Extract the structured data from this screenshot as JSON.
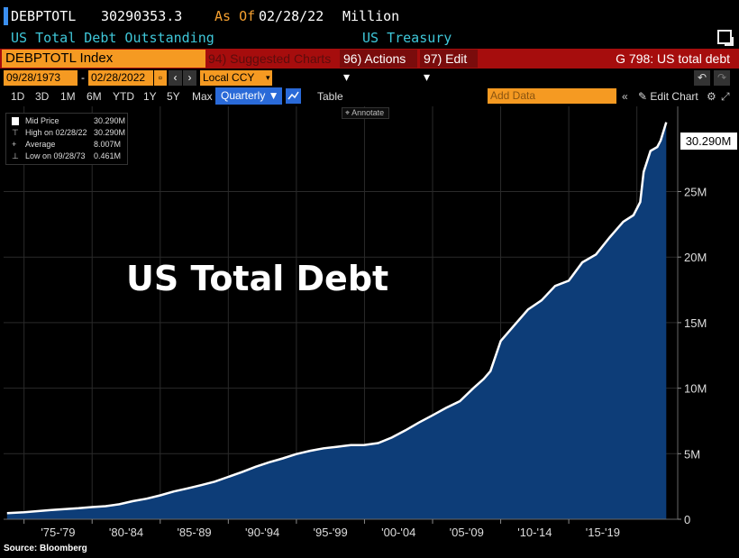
{
  "header": {
    "ticker": "DEBPTOTL",
    "last_value": "30290353.3",
    "as_of_label": "As Of",
    "as_of_date": "02/28/22",
    "units": "Million",
    "description": "US Total Debt Outstanding",
    "source": "US Treasury"
  },
  "toolbar": {
    "security": "DEBPTOTL Index",
    "suggested_charts": "94) Suggested Charts",
    "actions_label": "96) Actions ▾",
    "edit_label": "97) Edit ▾",
    "chart_title": "G 798: US total debt"
  },
  "range": {
    "start": "09/28/1973",
    "dash": "-",
    "end": "02/28/2022",
    "currency": "Local CCY"
  },
  "periods": [
    "1D",
    "3D",
    "1M",
    "6M",
    "YTD",
    "1Y",
    "5Y",
    "Max"
  ],
  "frequency": "Quarterly ▼",
  "table_label": "Table",
  "add_data_placeholder": "Add Data",
  "edit_chart_label": "Edit Chart",
  "annotate_label": "Annotate",
  "legend": [
    {
      "label": "Mid Price",
      "value": "30.290M"
    },
    {
      "label": "High on 02/28/22",
      "value": "30.290M"
    },
    {
      "label": "Average",
      "value": "8.007M"
    },
    {
      "label": "Low on 09/28/73",
      "value": "0.461M"
    }
  ],
  "source_note": "Source: Bloomberg",
  "colors": {
    "background": "#000000",
    "area_fill": "#0d3d78",
    "line": "#ffffff",
    "accent_orange": "#f59a22",
    "accent_red": "#a60d0d",
    "accent_cyan": "#3fc7d9"
  },
  "chart_data": {
    "type": "area",
    "title": "US Total Debt",
    "xlabel": "",
    "ylabel": "",
    "x_tick_labels": [
      "'75-'79",
      "'80-'84",
      "'85-'89",
      "'90-'94",
      "'95-'99",
      "'00-'04",
      "'05-'09",
      "'10-'14",
      "'15-'19"
    ],
    "y_tick_labels": [
      "0",
      "5M",
      "10M",
      "15M",
      "20M",
      "25M"
    ],
    "y_ticks": [
      0,
      5,
      10,
      15,
      20,
      25
    ],
    "ylim": [
      0,
      31.5
    ],
    "xlim": [
      1973.5,
      2023.0
    ],
    "last_value_label": "30.290M",
    "grid": true,
    "series": [
      {
        "x": [
          1973.75,
          1975.0,
          1976.0,
          1977.0,
          1978.0,
          1979.0,
          1980.0,
          1981.0,
          1982.0,
          1983.0,
          1984.0,
          1985.0,
          1986.0,
          1987.0,
          1988.0,
          1989.0,
          1990.0,
          1991.0,
          1992.0,
          1993.0,
          1994.0,
          1995.0,
          1996.0,
          1997.0,
          1998.0,
          1999.0,
          2000.0,
          2001.0,
          2002.0,
          2003.0,
          2004.0,
          2005.0,
          2006.0,
          2007.0,
          2008.0,
          2008.75,
          2009.25,
          2010.0,
          2011.0,
          2012.0,
          2013.0,
          2014.0,
          2015.0,
          2016.0,
          2017.0,
          2018.0,
          2019.0,
          2019.75,
          2020.25,
          2020.5,
          2021.0,
          2021.5,
          2021.75,
          2022.16
        ],
        "values": [
          0.46,
          0.53,
          0.62,
          0.7,
          0.78,
          0.84,
          0.93,
          1.0,
          1.14,
          1.38,
          1.57,
          1.82,
          2.12,
          2.35,
          2.6,
          2.87,
          3.23,
          3.6,
          4.0,
          4.35,
          4.64,
          4.97,
          5.22,
          5.41,
          5.53,
          5.66,
          5.67,
          5.81,
          6.23,
          6.78,
          7.38,
          7.93,
          8.5,
          9.0,
          10.0,
          10.7,
          11.3,
          13.6,
          14.8,
          16.0,
          16.7,
          17.8,
          18.2,
          19.6,
          20.2,
          21.5,
          22.7,
          23.2,
          24.2,
          26.5,
          28.1,
          28.4,
          28.9,
          30.29
        ]
      }
    ]
  }
}
